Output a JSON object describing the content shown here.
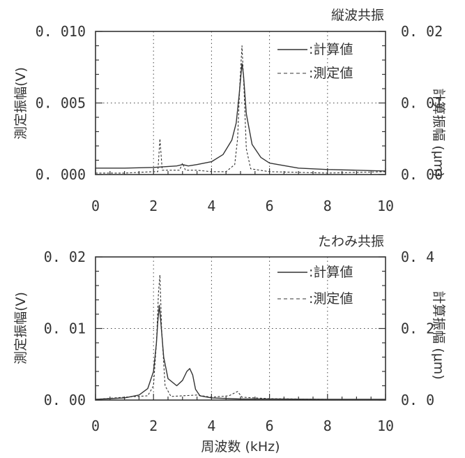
{
  "chart_data": [
    {
      "type": "line",
      "title": "縦波共振",
      "xlabel": "",
      "xlim": [
        0,
        10
      ],
      "x_ticks": [
        "0",
        "2",
        "4",
        "6",
        "8",
        "10"
      ],
      "ylabel": "測定振幅(V)",
      "ylim": [
        0,
        0.01
      ],
      "y_ticks": [
        "0. 000",
        "0. 005",
        "0. 010"
      ],
      "y2label": "計算振幅 (μm)",
      "y2lim": [
        0,
        0.02
      ],
      "y2_ticks": [
        "0. 00",
        "0. 01",
        "0. 02"
      ],
      "grid": "dotted",
      "legend_position": "top-right",
      "series": [
        {
          "name": ":計算値",
          "axis": "right",
          "style": "solid",
          "points": [
            [
              0,
              0.0009
            ],
            [
              1,
              0.0009
            ],
            [
              2,
              0.001
            ],
            [
              2.8,
              0.0012
            ],
            [
              3,
              0.0014
            ],
            [
              3.2,
              0.0012
            ],
            [
              3.5,
              0.0014
            ],
            [
              4,
              0.0018
            ],
            [
              4.4,
              0.0028
            ],
            [
              4.7,
              0.0048
            ],
            [
              4.85,
              0.0072
            ],
            [
              4.95,
              0.011
            ],
            [
              5.05,
              0.0155
            ],
            [
              5.1,
              0.014
            ],
            [
              5.2,
              0.0085
            ],
            [
              5.4,
              0.0042
            ],
            [
              5.7,
              0.0024
            ],
            [
              6,
              0.0016
            ],
            [
              7,
              0.0009
            ],
            [
              8,
              0.0007
            ],
            [
              9,
              0.0006
            ],
            [
              10,
              0.0005
            ]
          ]
        },
        {
          "name": ":測定値",
          "axis": "left",
          "style": "dashed",
          "points": [
            [
              0,
              0.0001
            ],
            [
              1,
              0.0001
            ],
            [
              2,
              0.0002
            ],
            [
              2.15,
              0.0002
            ],
            [
              2.22,
              0.0025
            ],
            [
              2.3,
              0.0003
            ],
            [
              2.9,
              0.0003
            ],
            [
              3,
              0.0008
            ],
            [
              3.1,
              0.0003
            ],
            [
              3.5,
              0.0003
            ],
            [
              4,
              0.0002
            ],
            [
              4.5,
              0.0002
            ],
            [
              4.8,
              0.0007
            ],
            [
              4.9,
              0.0025
            ],
            [
              4.98,
              0.0065
            ],
            [
              5.05,
              0.009
            ],
            [
              5.12,
              0.006
            ],
            [
              5.2,
              0.0018
            ],
            [
              5.35,
              0.0004
            ],
            [
              6,
              0.0002
            ],
            [
              8,
              0.0001
            ],
            [
              10,
              0.0002
            ]
          ]
        }
      ]
    },
    {
      "type": "line",
      "title": "たわみ共振",
      "xlabel": "周波数 (kHz)",
      "xlim": [
        0,
        10
      ],
      "x_ticks": [
        "0",
        "2",
        "4",
        "6",
        "8",
        "10"
      ],
      "ylabel": "測定振幅(V)",
      "ylim": [
        0,
        0.02
      ],
      "y_ticks": [
        "0. 00",
        "0. 01",
        "0. 02"
      ],
      "y2label": "計算振幅 (μm)",
      "y2lim": [
        0,
        0.4
      ],
      "y2_ticks": [
        "0. 0",
        "0. 2",
        "0. 4"
      ],
      "grid": "dotted",
      "legend_position": "top-right",
      "series": [
        {
          "name": ":計算値",
          "axis": "right",
          "style": "solid",
          "points": [
            [
              0,
              0.002
            ],
            [
              1,
              0.006
            ],
            [
              1.5,
              0.014
            ],
            [
              1.8,
              0.032
            ],
            [
              2,
              0.08
            ],
            [
              2.1,
              0.16
            ],
            [
              2.15,
              0.22
            ],
            [
              2.2,
              0.265
            ],
            [
              2.25,
              0.22
            ],
            [
              2.35,
              0.12
            ],
            [
              2.5,
              0.06
            ],
            [
              2.8,
              0.04
            ],
            [
              3,
              0.055
            ],
            [
              3.15,
              0.08
            ],
            [
              3.25,
              0.088
            ],
            [
              3.35,
              0.07
            ],
            [
              3.45,
              0.03
            ],
            [
              3.6,
              0.012
            ],
            [
              4,
              0.006
            ],
            [
              5,
              0.003
            ],
            [
              6,
              0.003
            ],
            [
              8,
              0.002
            ],
            [
              10,
              0.002
            ]
          ]
        },
        {
          "name": ":測定値",
          "axis": "left",
          "style": "dashed",
          "points": [
            [
              0,
              0.0001
            ],
            [
              1,
              0.0004
            ],
            [
              1.8,
              0.0006
            ],
            [
              2,
              0.002
            ],
            [
              2.1,
              0.008
            ],
            [
              2.17,
              0.015
            ],
            [
              2.22,
              0.0175
            ],
            [
              2.28,
              0.01
            ],
            [
              2.4,
              0.002
            ],
            [
              2.6,
              0.0005
            ],
            [
              3,
              0.0006
            ],
            [
              3.5,
              0.0007
            ],
            [
              4,
              0.0004
            ],
            [
              4.6,
              0.0006
            ],
            [
              4.9,
              0.0012
            ],
            [
              5.05,
              0.0004
            ],
            [
              6,
              0.0002
            ],
            [
              8,
              0.0001
            ],
            [
              10,
              0.0001
            ]
          ]
        }
      ]
    }
  ]
}
